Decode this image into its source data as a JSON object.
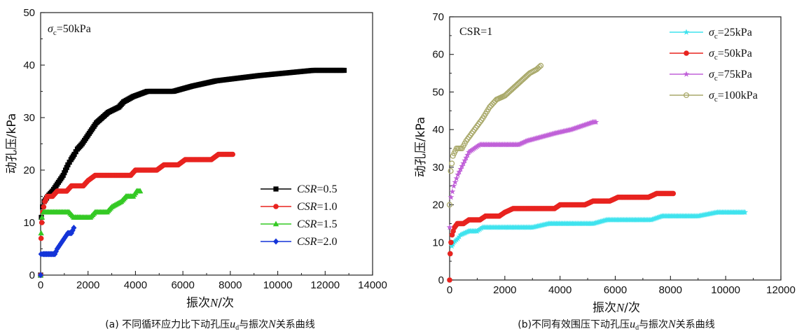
{
  "chart_data": [
    {
      "type": "scatter",
      "title": "",
      "caption_prefix": "(a) 不同循环应力比下动孔压",
      "caption_var": "u",
      "caption_sub": "d",
      "caption_mid": "与振次",
      "caption_var2": "N",
      "caption_suffix": "关系曲线",
      "annotation": {
        "sym": "σ",
        "sub": "c",
        "text": "=50kPa"
      },
      "xlabel": {
        "pre": "振次",
        "var": "N",
        "post": "/次"
      },
      "ylabel": "动孔压/kPa",
      "xlim": [
        0,
        14000
      ],
      "ylim": [
        0,
        50
      ],
      "xticks": [
        "0",
        "2000",
        "4000",
        "6000",
        "8000",
        "10000",
        "12000",
        "14000"
      ],
      "yticks": [
        "0",
        "10",
        "20",
        "30",
        "40",
        "50"
      ],
      "legend_position": "middle-right",
      "series": [
        {
          "label_var": "CSR",
          "label_val": "=0.5",
          "color": "#000000",
          "marker": "square",
          "points": [
            [
              0,
              0
            ],
            [
              30,
              11
            ],
            [
              80,
              13
            ],
            [
              150,
              14
            ],
            [
              300,
              15
            ],
            [
              500,
              16
            ],
            [
              650,
              17
            ],
            [
              800,
              18
            ],
            [
              950,
              19
            ],
            [
              1050,
              20
            ],
            [
              1150,
              21
            ],
            [
              1280,
              22
            ],
            [
              1420,
              23
            ],
            [
              1550,
              24
            ],
            [
              1750,
              25
            ],
            [
              1900,
              26
            ],
            [
              2050,
              27
            ],
            [
              2200,
              28
            ],
            [
              2350,
              29
            ],
            [
              2600,
              30
            ],
            [
              2850,
              31
            ],
            [
              3300,
              32
            ],
            [
              3500,
              33
            ],
            [
              3900,
              34
            ],
            [
              4500,
              35
            ],
            [
              5600,
              35
            ],
            [
              6400,
              36
            ],
            [
              7400,
              37
            ],
            [
              9200,
              38
            ],
            [
              11500,
              39
            ],
            [
              12800,
              39
            ]
          ]
        },
        {
          "label_var": "CSR",
          "label_val": "=1.0",
          "color": "#e8231f",
          "marker": "circle",
          "points": [
            [
              0,
              0
            ],
            [
              20,
              7
            ],
            [
              50,
              10
            ],
            [
              90,
              12
            ],
            [
              130,
              13
            ],
            [
              180,
              14
            ],
            [
              280,
              15
            ],
            [
              500,
              15
            ],
            [
              700,
              16
            ],
            [
              1100,
              16
            ],
            [
              1300,
              17
            ],
            [
              1800,
              17
            ],
            [
              2000,
              18
            ],
            [
              2300,
              19
            ],
            [
              3000,
              19
            ],
            [
              3800,
              19
            ],
            [
              4000,
              20
            ],
            [
              4900,
              20
            ],
            [
              5200,
              21
            ],
            [
              5800,
              21
            ],
            [
              6100,
              22
            ],
            [
              7200,
              22
            ],
            [
              7500,
              23
            ],
            [
              8100,
              23
            ]
          ]
        },
        {
          "label_var": "CSR",
          "label_val": "=1.5",
          "color": "#34c924",
          "marker": "triangle",
          "points": [
            [
              0,
              0
            ],
            [
              20,
              8
            ],
            [
              60,
              11
            ],
            [
              120,
              12
            ],
            [
              500,
              12
            ],
            [
              1200,
              12
            ],
            [
              1400,
              11
            ],
            [
              1700,
              11
            ],
            [
              2100,
              11
            ],
            [
              2300,
              12
            ],
            [
              2800,
              12
            ],
            [
              3000,
              13
            ],
            [
              3400,
              14
            ],
            [
              3600,
              15
            ],
            [
              3900,
              15
            ],
            [
              4050,
              16
            ],
            [
              4200,
              16
            ]
          ]
        },
        {
          "label_var": "CSR",
          "label_val": "=2.0",
          "color": "#1434d8",
          "marker": "diamond",
          "points": [
            [
              0,
              0
            ],
            [
              20,
              4
            ],
            [
              100,
              4
            ],
            [
              400,
              4
            ],
            [
              600,
              4
            ],
            [
              700,
              5
            ],
            [
              850,
              6
            ],
            [
              1000,
              7
            ],
            [
              1150,
              8
            ],
            [
              1300,
              8
            ],
            [
              1400,
              9
            ]
          ]
        }
      ]
    },
    {
      "type": "scatter",
      "title": "",
      "caption_prefix": "(b)不同有效围压下动孔压",
      "caption_var": "u",
      "caption_sub": "d",
      "caption_mid": "与振次",
      "caption_var2": "N",
      "caption_suffix": "关系曲线",
      "annotation": {
        "text": "CSR=1"
      },
      "xlabel": {
        "pre": "振次",
        "var": "N",
        "post": "/次"
      },
      "ylabel": "动孔压/kPa",
      "xlim": [
        0,
        12000
      ],
      "ylim": [
        0,
        70
      ],
      "xticks": [
        "0",
        "2000",
        "4000",
        "6000",
        "8000",
        "10000",
        "12000"
      ],
      "yticks": [
        "0",
        "10",
        "20",
        "30",
        "40",
        "50",
        "60",
        "70"
      ],
      "legend_position": "top-right",
      "series": [
        {
          "label_sym": "σ",
          "label_sub": "c",
          "label_val": "=25kPa",
          "color": "#3fe3ee",
          "marker": "star",
          "points": [
            [
              0,
              0
            ],
            [
              20,
              7
            ],
            [
              80,
              9
            ],
            [
              150,
              10
            ],
            [
              300,
              11
            ],
            [
              400,
              12
            ],
            [
              700,
              13
            ],
            [
              1000,
              13
            ],
            [
              1200,
              14
            ],
            [
              2000,
              14
            ],
            [
              3000,
              14
            ],
            [
              3600,
              15
            ],
            [
              4500,
              15
            ],
            [
              5200,
              15
            ],
            [
              5700,
              16
            ],
            [
              6500,
              16
            ],
            [
              7300,
              16
            ],
            [
              7700,
              17
            ],
            [
              9000,
              17
            ],
            [
              9700,
              18
            ],
            [
              10700,
              18
            ]
          ]
        },
        {
          "label_sym": "σ",
          "label_sub": "c",
          "label_val": "=50kPa",
          "color": "#e8231f",
          "marker": "circle",
          "points": [
            [
              0,
              0
            ],
            [
              20,
              7
            ],
            [
              50,
              10
            ],
            [
              90,
              12
            ],
            [
              130,
              13
            ],
            [
              180,
              14
            ],
            [
              280,
              15
            ],
            [
              500,
              15
            ],
            [
              700,
              16
            ],
            [
              1100,
              16
            ],
            [
              1300,
              17
            ],
            [
              1800,
              17
            ],
            [
              2000,
              18
            ],
            [
              2300,
              19
            ],
            [
              3000,
              19
            ],
            [
              3800,
              19
            ],
            [
              4000,
              20
            ],
            [
              4900,
              20
            ],
            [
              5200,
              21
            ],
            [
              5800,
              21
            ],
            [
              6100,
              22
            ],
            [
              7200,
              22
            ],
            [
              7500,
              23
            ],
            [
              8100,
              23
            ]
          ]
        },
        {
          "label_sym": "σ",
          "label_sub": "c",
          "label_val": "=75kPa",
          "color": "#c060d8",
          "marker": "star",
          "points": [
            [
              0,
              14
            ],
            [
              50,
              22
            ],
            [
              150,
              25
            ],
            [
              300,
              28
            ],
            [
              500,
              31
            ],
            [
              700,
              34
            ],
            [
              900,
              35
            ],
            [
              1100,
              36
            ],
            [
              1500,
              36
            ],
            [
              2000,
              36
            ],
            [
              2500,
              36
            ],
            [
              2800,
              37
            ],
            [
              3300,
              38
            ],
            [
              3800,
              39
            ],
            [
              4400,
              40
            ],
            [
              4800,
              41
            ],
            [
              5200,
              42
            ],
            [
              5300,
              42
            ]
          ]
        },
        {
          "label_sym": "σ",
          "label_sub": "c",
          "label_val": "=100kPa",
          "color": "#a9a96a",
          "marker": "circle-open",
          "points": [
            [
              0,
              20
            ],
            [
              40,
              29
            ],
            [
              120,
              33
            ],
            [
              250,
              35
            ],
            [
              450,
              35
            ],
            [
              600,
              37
            ],
            [
              800,
              39
            ],
            [
              1000,
              41
            ],
            [
              1200,
              43
            ],
            [
              1450,
              46
            ],
            [
              1700,
              48
            ],
            [
              2000,
              49
            ],
            [
              2300,
              51
            ],
            [
              2600,
              53
            ],
            [
              2900,
              55
            ],
            [
              3150,
              56
            ],
            [
              3300,
              57
            ]
          ]
        }
      ]
    }
  ]
}
